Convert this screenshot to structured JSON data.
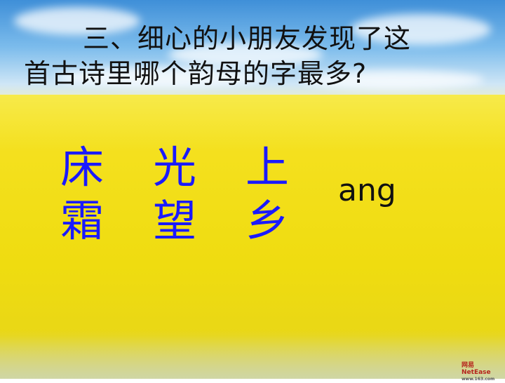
{
  "question": {
    "line1": "三、细心的小朋友发现了这",
    "line2": "首古诗里哪个韵母的字最多?"
  },
  "characters": [
    {
      "col": "床",
      "row2": "霜"
    },
    {
      "col": "光",
      "row2": "望"
    },
    {
      "col": "上",
      "row2": "乡"
    }
  ],
  "answer": "ang",
  "logo": {
    "main": "网易 NetEase",
    "sub": "www.163.com"
  },
  "colors": {
    "character_text": "#1a1aff",
    "background_field": "#f4e01e",
    "sky": "#7cbcec"
  }
}
